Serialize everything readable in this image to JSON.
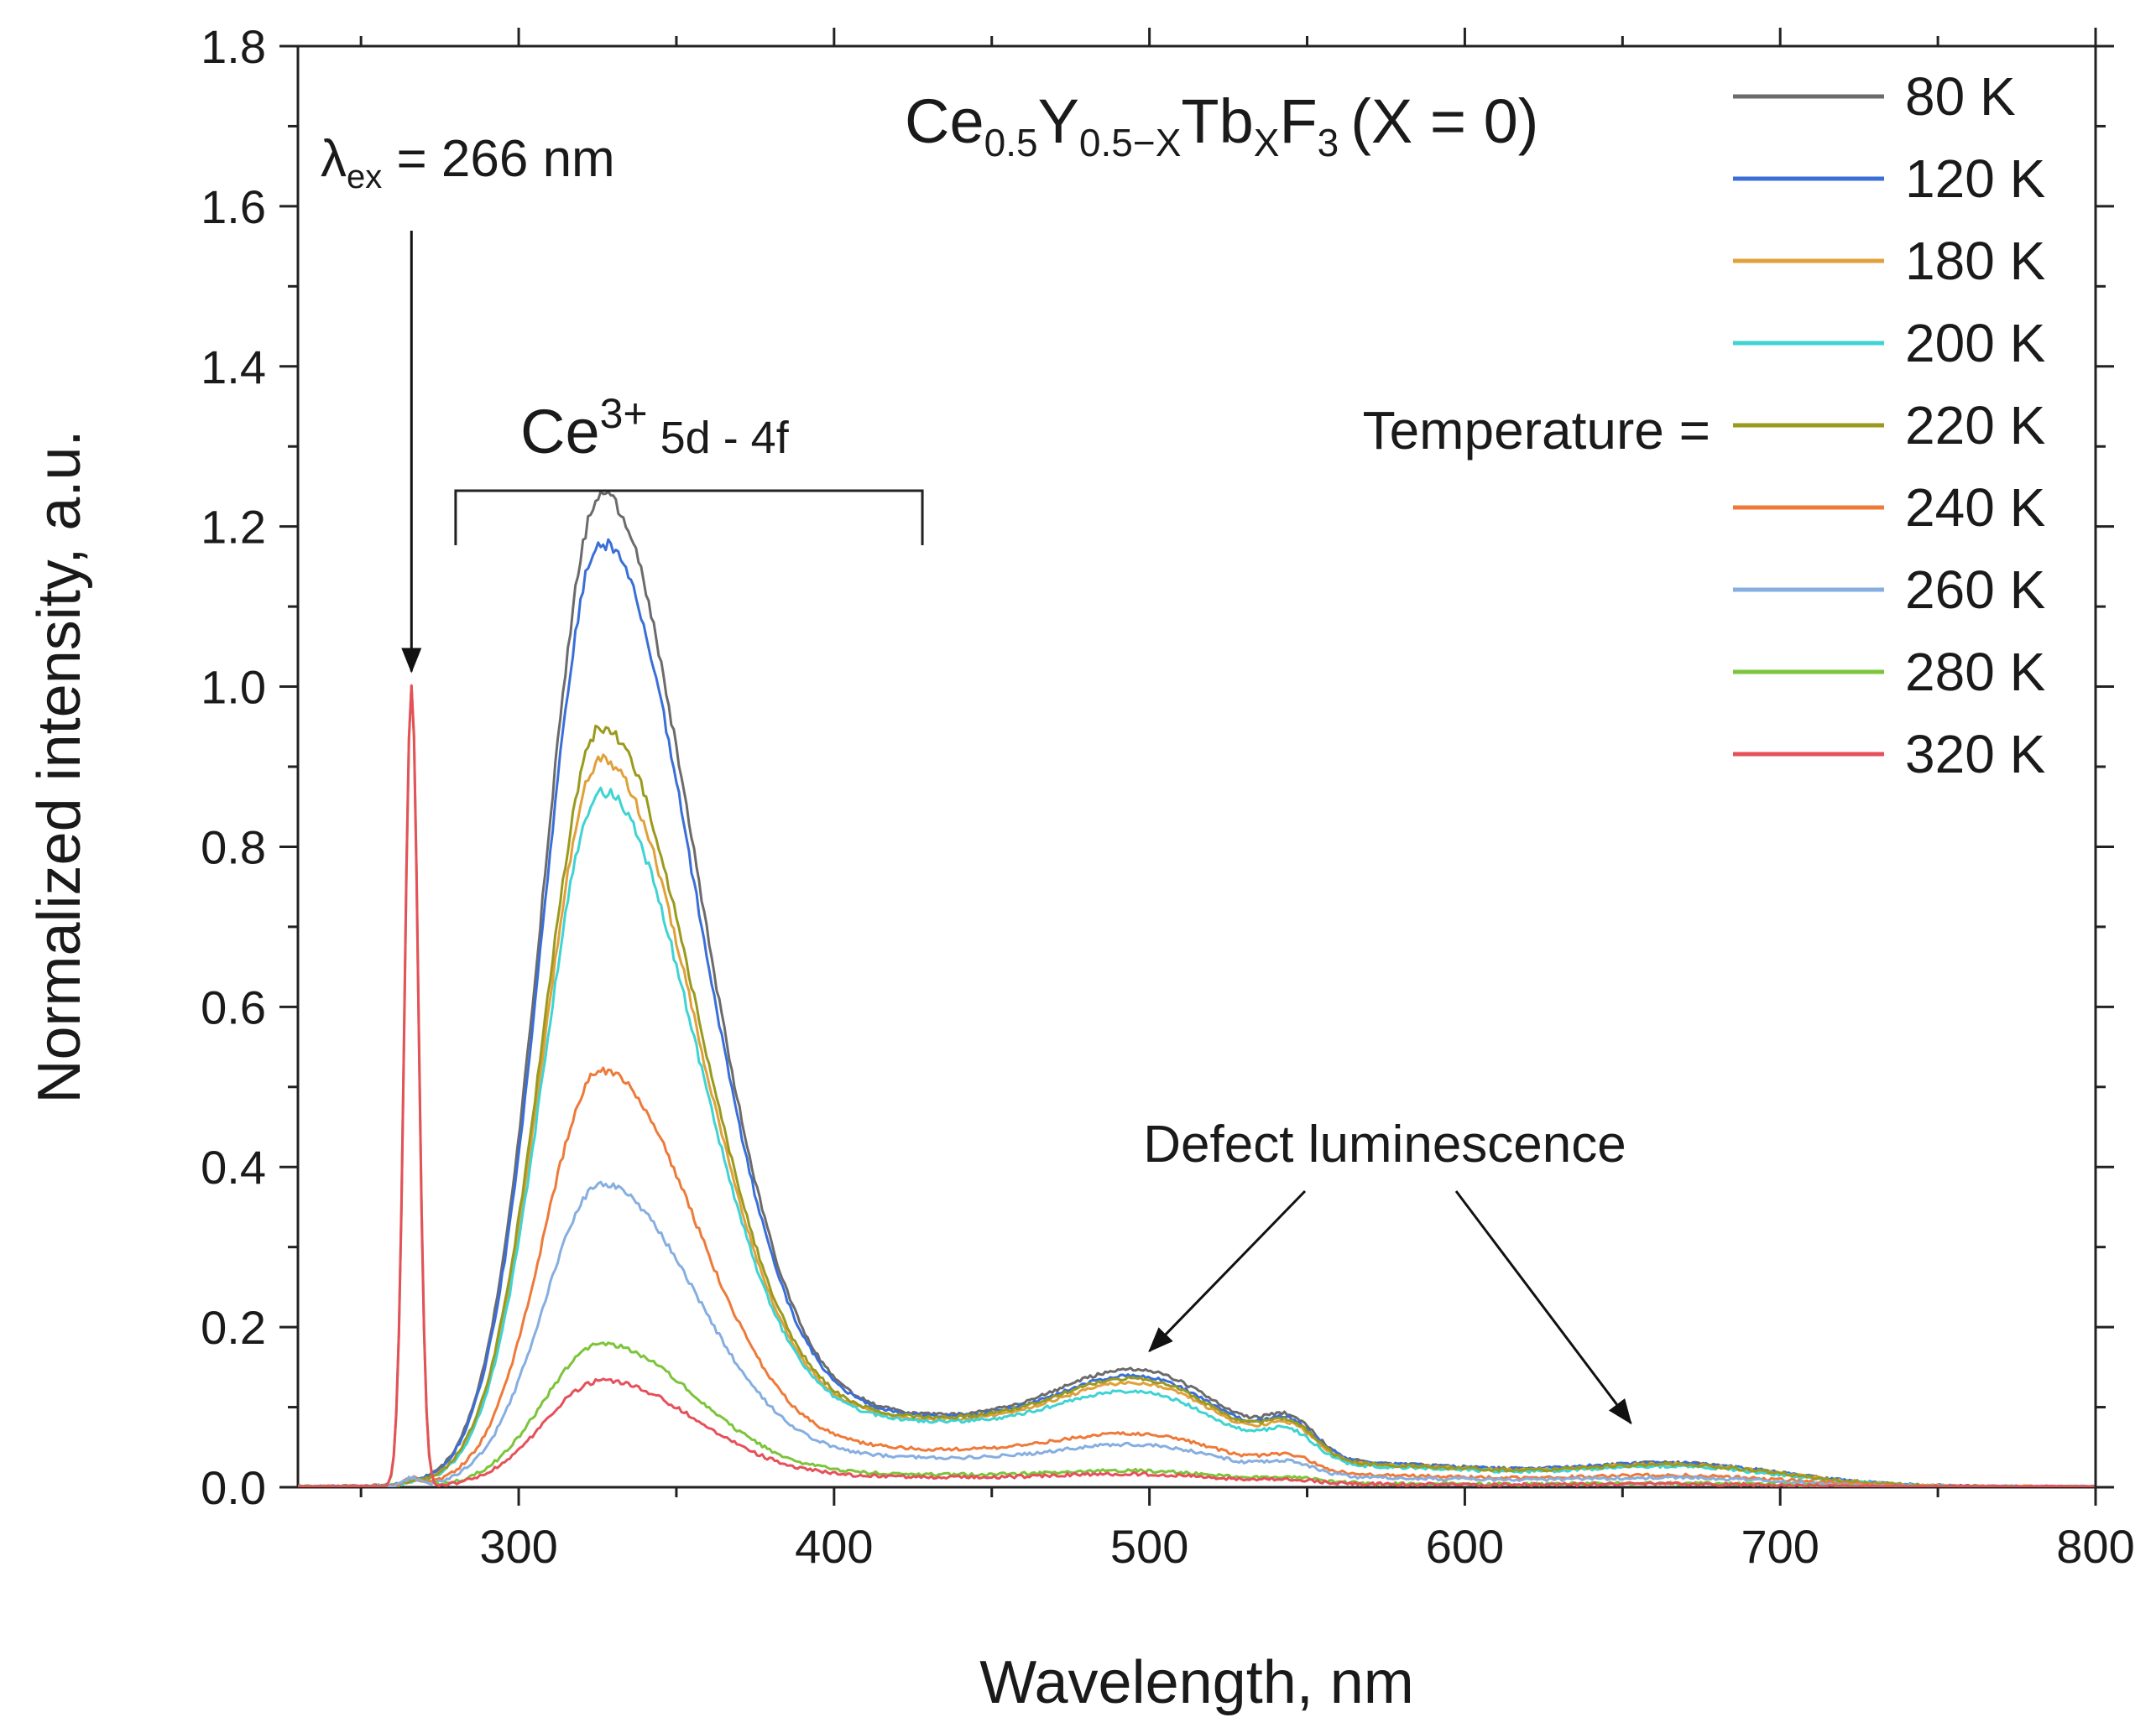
{
  "chart_data": {
    "type": "line",
    "title": {
      "prefix": "Ce",
      "sub1": "0.5",
      "mid1": "Y",
      "sub2": "0.5−X",
      "mid2": "Tb",
      "sub3": "X",
      "mid3": "F",
      "sub4": "3",
      "suffix": "(X = 0)"
    },
    "xlabel": "Wavelength, nm",
    "ylabel": "Normalized intensity, a.u.",
    "xlim": [
      230,
      800
    ],
    "ylim": [
      0,
      1.8
    ],
    "xticks": [
      "300",
      "400",
      "500",
      "600",
      "700",
      "800"
    ],
    "yticks": [
      "0.0",
      "0.2",
      "0.4",
      "0.6",
      "0.8",
      "1.0",
      "1.2",
      "1.4",
      "1.6",
      "1.8"
    ],
    "legend_title": "Temperature =",
    "legend_position": "top-right",
    "annotations": {
      "excitation": {
        "lambda": "λ",
        "sub": "ex",
        "text": " = 266 nm",
        "x": 266,
        "y": 1.0
      },
      "ce_band": {
        "main": "Ce",
        "sup": "3+",
        "rest": " 5d - 4f",
        "x_from": 280,
        "x_to": 428
      },
      "defect": {
        "text": "Defect luminescence",
        "targets": [
          [
            500,
            0.17
          ],
          [
            650,
            0.08
          ]
        ]
      }
    },
    "excitation_line": {
      "x": 266,
      "width_nm": 2.2
    },
    "peaks": {
      "ce_center": 326,
      "ce_left_sigma": 18,
      "ce_right_sigma": 30,
      "defect1_center": 500,
      "defect2_center": 665
    },
    "series": [
      {
        "name": "80 K",
        "color": "#6b6b6b",
        "laser": 0.003,
        "ce_peak": 1.22,
        "shoulder": 0.085,
        "defect1": 0.115,
        "defect2": 0.03
      },
      {
        "name": "120 K",
        "color": "#3a6fd8",
        "laser": 0.003,
        "ce_peak": 1.16,
        "shoulder": 0.083,
        "defect1": 0.108,
        "defect2": 0.03
      },
      {
        "name": "180 K",
        "color": "#e0a03a",
        "laser": 0.003,
        "ce_peak": 0.89,
        "shoulder": 0.08,
        "defect1": 0.1,
        "defect2": 0.028
      },
      {
        "name": "200 K",
        "color": "#3fd3d3",
        "laser": 0.003,
        "ce_peak": 0.85,
        "shoulder": 0.078,
        "defect1": 0.09,
        "defect2": 0.026
      },
      {
        "name": "220 K",
        "color": "#9a9a1e",
        "laser": 0.003,
        "ce_peak": 0.93,
        "shoulder": 0.082,
        "defect1": 0.105,
        "defect2": 0.028
      },
      {
        "name": "240 K",
        "color": "#ee7a3a",
        "laser": 0.01,
        "ce_peak": 0.51,
        "shoulder": 0.045,
        "defect1": 0.05,
        "defect2": 0.015
      },
      {
        "name": "260 K",
        "color": "#86aee0",
        "laser": 0.01,
        "ce_peak": 0.37,
        "shoulder": 0.035,
        "defect1": 0.04,
        "defect2": 0.012
      },
      {
        "name": "280 K",
        "color": "#7cc43a",
        "laser": 1.0,
        "ce_peak": 0.175,
        "shoulder": 0.015,
        "defect1": 0.015,
        "defect2": 0.005
      },
      {
        "name": "320 K",
        "color": "#e6505a",
        "laser": 1.0,
        "ce_peak": 0.13,
        "shoulder": 0.012,
        "defect1": 0.012,
        "defect2": 0.004
      }
    ]
  }
}
